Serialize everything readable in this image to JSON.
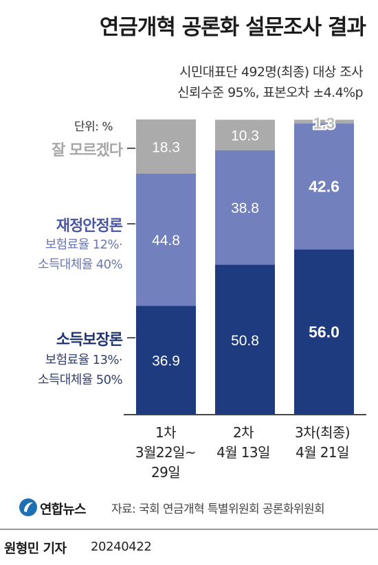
{
  "title": "연금개혁 공론화 설문조사 결과",
  "subtitle_lines": [
    "시민대표단 492명(최종) 대상 조사",
    "신뢰수준 95%, 표본오차 ±4.4%p"
  ],
  "unit_label": "단위: %",
  "legend": {
    "dont_know": {
      "label": "잘 모르겠다"
    },
    "fiscal": {
      "label": "재정안정론",
      "detail_1": "보험료율 12%·",
      "detail_2": "소득대체율 40%"
    },
    "income": {
      "label": "소득보장론",
      "detail_1": "보험료율 13%·",
      "detail_2": "소득대체율 50%"
    }
  },
  "x_labels": [
    {
      "line1": "1차",
      "line2": "3월22일~",
      "line3": "29일"
    },
    {
      "line1": "2차",
      "line2": "4월 13일",
      "line3": ""
    },
    {
      "line1": "3차(최종)",
      "line2": "4월 21일",
      "line3": ""
    }
  ],
  "source": "자료: 국회 연금개혁 특별위원회 공론화위원회",
  "logo_text": "연합뉴스",
  "byline": "원형민 기자",
  "date": "20240422",
  "colors": {
    "income": "#1f3b80",
    "fiscal": "#7280bd",
    "dont_know": "#ababab",
    "fiscal_text": "#4a57a0",
    "income_text": "#1f3470",
    "dont_know_text": "#a6a6a6",
    "income_detail": "#34406d",
    "fiscal_detail": "#6a76b3"
  },
  "chart_data": {
    "type": "bar",
    "stacked": true,
    "categories": [
      "1차",
      "2차",
      "3차(최종)"
    ],
    "series": [
      {
        "name": "소득보장론",
        "values": [
          36.9,
          50.8,
          56.0
        ]
      },
      {
        "name": "재정안정론",
        "values": [
          44.8,
          38.8,
          42.6
        ]
      },
      {
        "name": "잘 모르겠다",
        "values": [
          18.3,
          10.3,
          1.3
        ]
      }
    ],
    "ylim": [
      0,
      100
    ],
    "unit": "%",
    "bold_labels_category": 2
  }
}
